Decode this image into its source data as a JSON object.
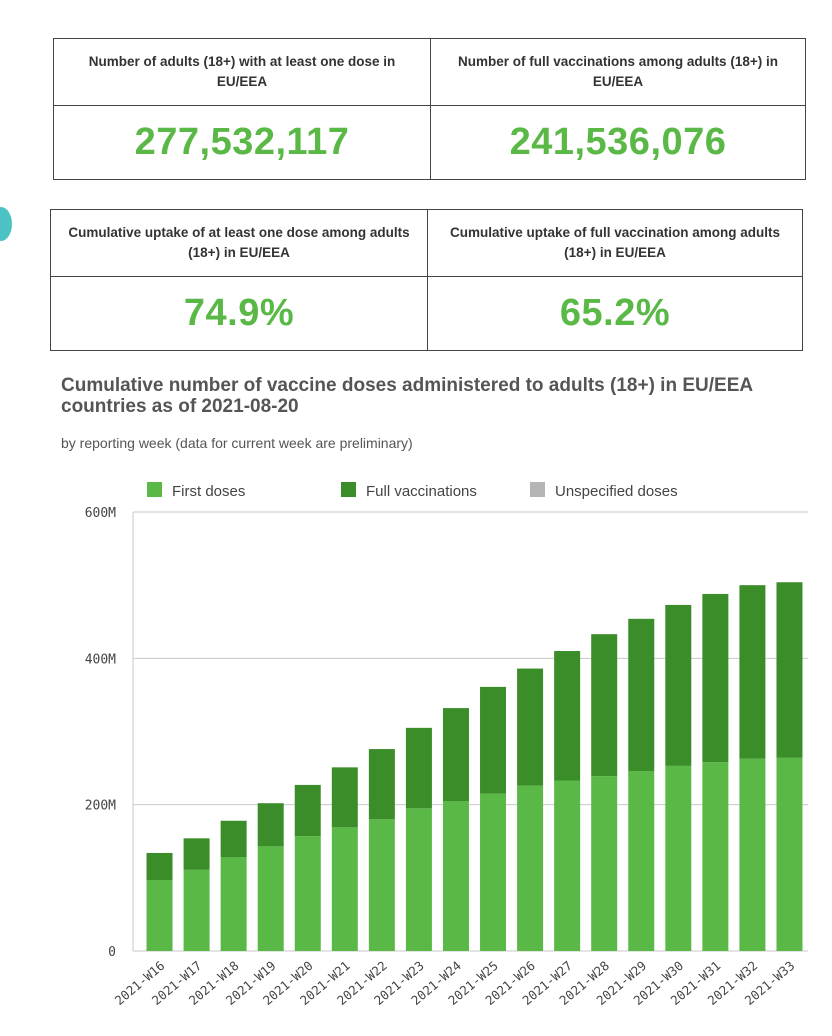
{
  "kpis_row1": [
    {
      "label": "Number of adults (18+) with at least one dose in EU/EEA",
      "value": "277,532,117"
    },
    {
      "label": "Number of full vaccinations among adults (18+) in EU/EEA",
      "value": "241,536,076"
    }
  ],
  "kpis_row2": [
    {
      "label": "Cumulative uptake of at least one dose among adults (18+) in EU/EEA",
      "value": "74.9%"
    },
    {
      "label": "Cumulative uptake of full vaccination among adults (18+) in EU/EEA",
      "value": "65.2%"
    }
  ],
  "colors": {
    "first_doses": "#5ab946",
    "full_vaccinations": "#3b8d2a",
    "unspecified": "#b5b5b5",
    "kpi_value": "#5ab946",
    "side_marker": "#4cc2c4"
  },
  "chart_data": {
    "type": "bar",
    "stacked": true,
    "title": "Cumulative number of vaccine doses administered to adults (18+) in EU/EEA countries as of 2021-08-20",
    "subtitle": "by reporting week (data for current week are preliminary)",
    "xlabel": "",
    "ylabel": "",
    "ylim": [
      0,
      600000000
    ],
    "yticks": [
      {
        "value": 0,
        "label": "0"
      },
      {
        "value": 200000000,
        "label": "200M"
      },
      {
        "value": 400000000,
        "label": "400M"
      },
      {
        "value": 600000000,
        "label": "600M"
      }
    ],
    "grid": true,
    "legend_position": "top",
    "categories": [
      "2021-W16",
      "2021-W17",
      "2021-W18",
      "2021-W19",
      "2021-W20",
      "2021-W21",
      "2021-W22",
      "2021-W23",
      "2021-W24",
      "2021-W25",
      "2021-W26",
      "2021-W27",
      "2021-W28",
      "2021-W29",
      "2021-W30",
      "2021-W31",
      "2021-W32",
      "2021-W33"
    ],
    "series": [
      {
        "name": "First doses",
        "values": [
          97000000,
          111000000,
          128000000,
          143000000,
          157000000,
          169000000,
          180000000,
          195000000,
          205000000,
          215000000,
          226000000,
          233000000,
          239000000,
          246000000,
          253000000,
          258000000,
          263000000,
          264000000
        ]
      },
      {
        "name": "Full vaccinations",
        "values": [
          37000000,
          43000000,
          50000000,
          59000000,
          70000000,
          82000000,
          96000000,
          110000000,
          127000000,
          146000000,
          160000000,
          177000000,
          194000000,
          208000000,
          220000000,
          230000000,
          237000000,
          240000000
        ]
      },
      {
        "name": "Unspecified doses",
        "values": [
          0,
          0,
          0,
          0,
          0,
          0,
          0,
          0,
          0,
          0,
          0,
          0,
          0,
          0,
          0,
          0,
          0,
          0
        ]
      }
    ]
  }
}
